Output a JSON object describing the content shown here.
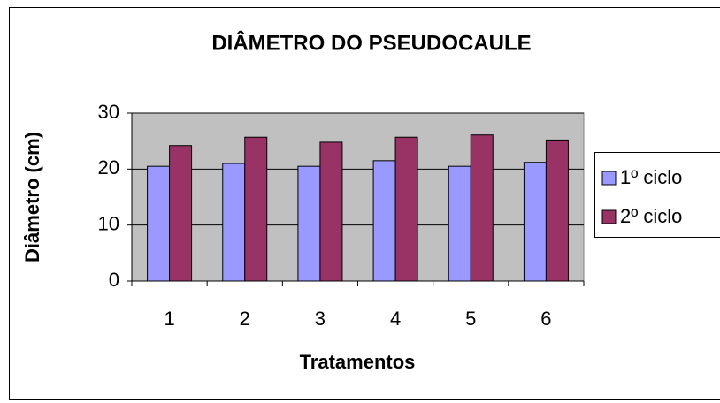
{
  "chart_data": {
    "type": "bar",
    "title": "DIÂMETRO DO PSEUDOCAULE",
    "x_label": "Tratamentos",
    "y_label": "Diâmetro (cm)",
    "categories": [
      "1",
      "2",
      "3",
      "4",
      "5",
      "6"
    ],
    "series": [
      {
        "name": "1º ciclo",
        "color": "#9999ff",
        "values": [
          20.5,
          21,
          20.5,
          21.5,
          20.5,
          21.2
        ]
      },
      {
        "name": "2º ciclo",
        "color": "#993366",
        "values": [
          24.2,
          25.7,
          24.8,
          25.7,
          26.1,
          25.2
        ]
      }
    ],
    "ylim": [
      0,
      30
    ],
    "yticks": [
      0,
      10,
      20,
      30
    ],
    "grid": true,
    "legend": "right"
  }
}
